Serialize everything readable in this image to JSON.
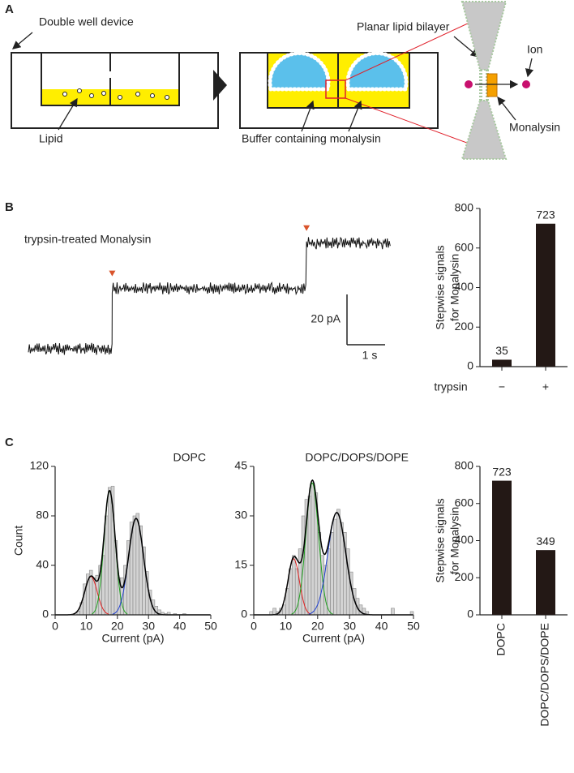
{
  "panels": {
    "a": "A",
    "b": "B",
    "c": "C"
  },
  "diagram": {
    "device": "Double well device",
    "lipid": "Lipid",
    "bilayer": "Planar lipid bilayer",
    "ion": "Ion",
    "monalysin": "Monalysin",
    "buffer": "Buffer containing monalysin"
  },
  "chart_data": [
    {
      "type": "trace",
      "title": "trypsin-treated Monalysin",
      "duration": 9.5,
      "step_times": [
        2.2,
        7.3
      ],
      "levels": [
        0,
        24,
        42
      ],
      "noise": 1.2,
      "color": "#111111",
      "marker_color": "#d9542c",
      "scale_bars": {
        "y": {
          "value": 20,
          "label": "20 pA"
        },
        "x": {
          "value": 1,
          "label": "1 s"
        }
      }
    },
    {
      "type": "bar",
      "ylabel": [
        "Stepwise signals",
        "for Monalysin"
      ],
      "xlabel": "trypsin",
      "categories": [
        "−",
        "+"
      ],
      "values": [
        35,
        723
      ],
      "color": "#231815",
      "ylim": [
        0,
        800
      ],
      "yticks": [
        0,
        200,
        400,
        600,
        800
      ]
    },
    {
      "type": "histogram",
      "title": "DOPC",
      "xlabel": "Current (pA)",
      "ylabel": "Count",
      "color": "#d3d3d3",
      "bins": [
        7,
        8,
        9,
        10,
        11,
        12,
        13,
        14,
        15,
        16,
        17,
        18,
        19,
        20,
        21,
        22,
        23,
        24,
        25,
        26,
        27,
        28,
        29,
        30,
        31,
        32,
        33,
        34,
        35,
        36,
        37,
        38,
        39,
        40,
        41,
        42
      ],
      "values": [
        3,
        10,
        25,
        33,
        36,
        30,
        32,
        40,
        48,
        80,
        103,
        104,
        60,
        30,
        30,
        40,
        60,
        75,
        80,
        82,
        72,
        55,
        35,
        20,
        12,
        7,
        4,
        2,
        1,
        2,
        0,
        1,
        0,
        0,
        1
      ],
      "xlim": [
        0,
        50
      ],
      "xticks": [
        0,
        10,
        20,
        30,
        40,
        50
      ],
      "ylim": [
        0,
        120
      ],
      "yticks": [
        0,
        40,
        80,
        120
      ],
      "fits": [
        {
          "color": "#e02020",
          "mean": 11.5,
          "sd": 2,
          "peak": 31
        },
        {
          "color": "#20a020",
          "mean": 17.5,
          "sd": 1.8,
          "peak": 100
        },
        {
          "color": "#2040d0",
          "mean": 26,
          "sd": 2.4,
          "peak": 78
        }
      ],
      "fit_total_color": "#000000"
    },
    {
      "type": "histogram",
      "title": "DOPC/DOPS/DOPE",
      "xlabel": "Current (pA)",
      "color": "#d3d3d3",
      "bins": [
        5,
        6,
        7,
        8,
        9,
        10,
        11,
        12,
        13,
        14,
        15,
        16,
        17,
        18,
        19,
        20,
        21,
        22,
        23,
        24,
        25,
        26,
        27,
        28,
        29,
        30,
        31,
        32,
        33,
        34,
        35,
        36,
        37,
        38,
        39,
        40,
        41,
        42,
        43,
        44,
        45,
        46,
        47,
        48,
        49,
        50
      ],
      "values": [
        1,
        2,
        1,
        2,
        3,
        8,
        14,
        18,
        14,
        20,
        30,
        35,
        36,
        40,
        37,
        25,
        18,
        15,
        20,
        25,
        29,
        32,
        28,
        25,
        20,
        13,
        8,
        5,
        3,
        2,
        1,
        0,
        0,
        0,
        0,
        0,
        0,
        0,
        2,
        0,
        0,
        0,
        0,
        0,
        1
      ],
      "xlim": [
        0,
        50
      ],
      "xticks": [
        0,
        10,
        20,
        30,
        40,
        50
      ],
      "ylim": [
        0,
        45
      ],
      "yticks": [
        0,
        15,
        30,
        45
      ],
      "fits": [
        {
          "color": "#e02020",
          "mean": 12.5,
          "sd": 1.8,
          "peak": 17
        },
        {
          "color": "#20a020",
          "mean": 18.3,
          "sd": 2,
          "peak": 40
        },
        {
          "color": "#2040d0",
          "mean": 26,
          "sd": 2.8,
          "peak": 31
        }
      ],
      "fit_total_color": "#000000"
    },
    {
      "type": "bar",
      "ylabel": [
        "Stepwise signals",
        "for Monalysin"
      ],
      "categories": [
        "DOPC",
        "DOPC/DOPS/DOPE"
      ],
      "values": [
        723,
        349
      ],
      "color": "#231815",
      "ylim": [
        0,
        800
      ],
      "yticks": [
        0,
        200,
        400,
        600,
        800
      ],
      "rotate_labels": true
    }
  ]
}
